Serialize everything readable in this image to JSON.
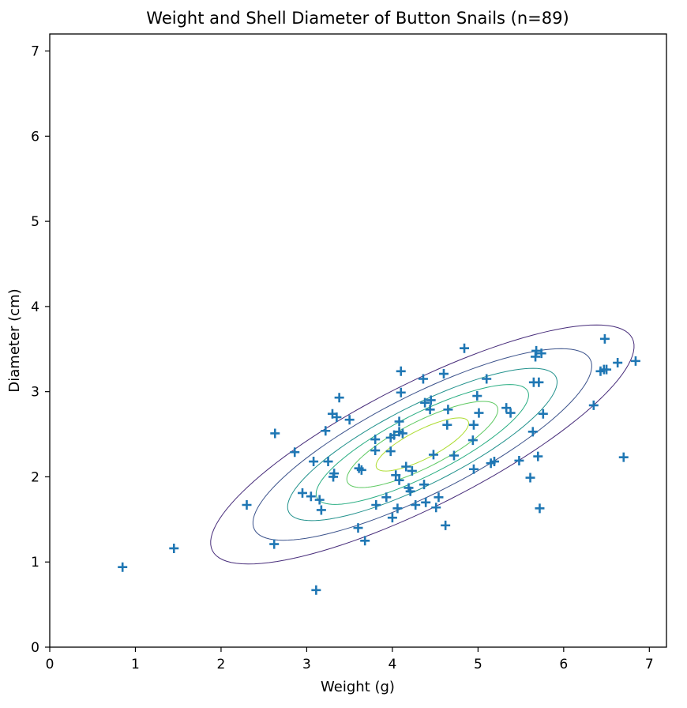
{
  "chart_data": {
    "type": "scatter",
    "title": "Weight and Shell Diameter of Button Snails (n=89)",
    "xlabel": "Weight (g)",
    "ylabel": "Diameter (cm)",
    "xlim": [
      0,
      7.2
    ],
    "ylim": [
      0,
      7.2
    ],
    "xticks": [
      "0",
      "1",
      "2",
      "3",
      "4",
      "5",
      "6",
      "7"
    ],
    "yticks": [
      "0",
      "1",
      "2",
      "3",
      "4",
      "5",
      "6",
      "7"
    ],
    "grid": false,
    "marker": "plus",
    "colors": {
      "points": "#1f77b4",
      "contours": [
        "#472c7a",
        "#3b528b",
        "#21918c",
        "#27ad81",
        "#5ec962",
        "#addc30"
      ]
    },
    "contours": {
      "center": [
        4.35,
        2.38
      ],
      "angle_deg": 27,
      "ellipses": [
        {
          "a": 2.75,
          "b": 0.72
        },
        {
          "a": 2.2,
          "b": 0.58
        },
        {
          "a": 1.75,
          "b": 0.46
        },
        {
          "a": 1.38,
          "b": 0.36
        },
        {
          "a": 0.98,
          "b": 0.27
        },
        {
          "a": 0.6,
          "b": 0.17
        }
      ]
    },
    "points": [
      [
        0.85,
        0.94
      ],
      [
        1.45,
        1.16
      ],
      [
        2.3,
        1.67
      ],
      [
        2.62,
        1.21
      ],
      [
        2.63,
        2.51
      ],
      [
        2.86,
        2.29
      ],
      [
        2.95,
        1.81
      ],
      [
        3.05,
        1.77
      ],
      [
        3.08,
        2.18
      ],
      [
        3.11,
        0.67
      ],
      [
        3.15,
        1.73
      ],
      [
        3.17,
        1.61
      ],
      [
        3.22,
        2.54
      ],
      [
        3.25,
        2.18
      ],
      [
        3.3,
        2.74
      ],
      [
        3.31,
        2.0
      ],
      [
        3.32,
        2.04
      ],
      [
        3.35,
        2.7
      ],
      [
        3.38,
        2.93
      ],
      [
        3.5,
        2.67
      ],
      [
        3.6,
        1.4
      ],
      [
        3.61,
        2.1
      ],
      [
        3.64,
        2.08
      ],
      [
        3.68,
        1.25
      ],
      [
        3.8,
        2.31
      ],
      [
        3.8,
        2.44
      ],
      [
        3.81,
        1.67
      ],
      [
        3.93,
        1.76
      ],
      [
        3.98,
        2.3
      ],
      [
        3.98,
        2.46
      ],
      [
        4.0,
        1.52
      ],
      [
        4.02,
        2.49
      ],
      [
        4.04,
        2.02
      ],
      [
        4.06,
        1.63
      ],
      [
        4.08,
        1.96
      ],
      [
        4.08,
        2.53
      ],
      [
        4.08,
        2.65
      ],
      [
        4.1,
        3.24
      ],
      [
        4.1,
        2.99
      ],
      [
        4.12,
        2.51
      ],
      [
        4.16,
        2.12
      ],
      [
        4.19,
        1.87
      ],
      [
        4.21,
        1.83
      ],
      [
        4.23,
        2.07
      ],
      [
        4.27,
        1.67
      ],
      [
        4.36,
        3.15
      ],
      [
        4.37,
        1.91
      ],
      [
        4.38,
        2.87
      ],
      [
        4.39,
        1.7
      ],
      [
        4.44,
        2.79
      ],
      [
        4.45,
        2.9
      ],
      [
        4.48,
        2.26
      ],
      [
        4.51,
        1.64
      ],
      [
        4.54,
        1.76
      ],
      [
        4.6,
        3.21
      ],
      [
        4.62,
        1.43
      ],
      [
        4.64,
        2.61
      ],
      [
        4.65,
        2.79
      ],
      [
        4.72,
        2.25
      ],
      [
        4.84,
        3.51
      ],
      [
        4.94,
        2.43
      ],
      [
        4.95,
        2.61
      ],
      [
        4.95,
        2.09
      ],
      [
        4.99,
        2.95
      ],
      [
        5.01,
        2.75
      ],
      [
        5.1,
        3.15
      ],
      [
        5.15,
        2.16
      ],
      [
        5.19,
        2.18
      ],
      [
        5.33,
        2.81
      ],
      [
        5.38,
        2.75
      ],
      [
        5.48,
        2.19
      ],
      [
        5.61,
        1.99
      ],
      [
        5.64,
        2.53
      ],
      [
        5.65,
        3.11
      ],
      [
        5.67,
        3.41
      ],
      [
        5.68,
        3.48
      ],
      [
        5.7,
        2.24
      ],
      [
        5.71,
        3.11
      ],
      [
        5.72,
        1.63
      ],
      [
        5.74,
        3.45
      ],
      [
        5.76,
        2.74
      ],
      [
        6.35,
        2.84
      ],
      [
        6.43,
        3.24
      ],
      [
        6.47,
        3.26
      ],
      [
        6.48,
        3.62
      ],
      [
        6.5,
        3.26
      ],
      [
        6.63,
        3.34
      ],
      [
        6.7,
        2.23
      ],
      [
        6.84,
        3.36
      ]
    ]
  }
}
